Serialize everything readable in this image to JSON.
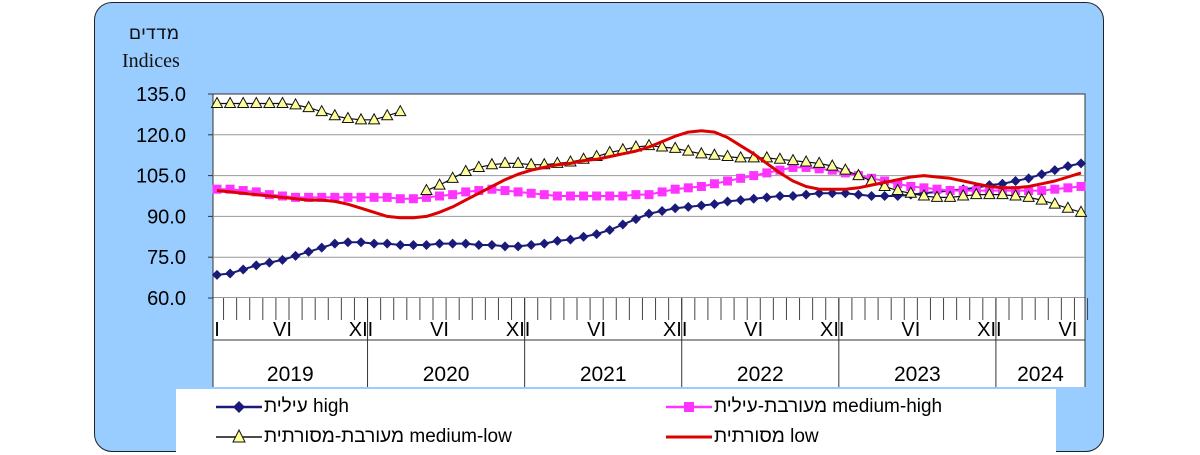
{
  "chart_data": {
    "type": "line",
    "ylabel_he": "מדדים",
    "ylabel_en": "Indices",
    "ylim": [
      60,
      135
    ],
    "yticks": [
      "135.0",
      "120.0",
      "105.0",
      "90.0",
      "75.0",
      "60.0"
    ],
    "ytick_values": [
      135,
      120,
      105,
      90,
      75,
      60
    ],
    "grid": true,
    "month_labels": [
      "I",
      "VI",
      "XII",
      "VI",
      "XII",
      "VI",
      "XII",
      "VI",
      "XII",
      "VI",
      "XII",
      "VI"
    ],
    "month_label_index": [
      0,
      5,
      11,
      17,
      23,
      29,
      35,
      41,
      47,
      53,
      59,
      65
    ],
    "years": [
      "2019",
      "2020",
      "2021",
      "2022",
      "2023",
      "2024"
    ],
    "n_months": 67,
    "series": [
      {
        "name": "עילית high",
        "color": "#1a1a7a",
        "marker": "diamond",
        "values": [
          68.5,
          69,
          70.5,
          72,
          73,
          74,
          75.5,
          77,
          78.5,
          80,
          80.5,
          80.5,
          80,
          80,
          79.5,
          79.5,
          79.5,
          80,
          80,
          80,
          79.5,
          79.5,
          79,
          79,
          79.5,
          80,
          81,
          81.5,
          82.5,
          83.5,
          85,
          87,
          89,
          91,
          92,
          93,
          93.5,
          94,
          94.5,
          95.5,
          96,
          96.5,
          97,
          97.5,
          97.5,
          98,
          98.5,
          98.5,
          98.5,
          98,
          97.5,
          97.5,
          97.5,
          98,
          98.5,
          99,
          99.5,
          100,
          100.5,
          101.5,
          102,
          103,
          104,
          105.5,
          107,
          108.5,
          109.5
        ]
      },
      {
        "name": "מעורבת-עילית medium-high",
        "color": "#ff33ff",
        "marker": "square",
        "values": [
          100,
          100,
          99.5,
          99,
          98,
          97.5,
          97,
          97,
          97,
          97,
          97,
          97,
          97,
          97,
          96.5,
          96.5,
          97,
          97.5,
          98,
          99,
          99.5,
          100,
          99.5,
          99,
          98.5,
          98,
          97.5,
          97.5,
          97.5,
          97.5,
          97.5,
          97.5,
          98,
          98,
          99,
          100,
          100.5,
          101,
          102,
          103,
          104,
          105,
          106,
          107,
          108,
          108,
          107.5,
          107,
          106,
          105,
          104,
          103,
          102,
          101,
          100.5,
          100,
          99.5,
          99.5,
          99.5,
          99.5,
          99.5,
          99.5,
          99.5,
          99.5,
          100,
          100.5,
          101
        ]
      },
      {
        "name": "מעורבת-מסורתית medium-low",
        "color": "#ffff99",
        "marker": "triangle",
        "values": [
          131.5,
          131.5,
          131.5,
          131.5,
          131.5,
          131.5,
          131,
          130,
          128.5,
          127,
          126,
          125.5,
          125.5,
          127,
          128.5,
          null,
          99.5,
          101.5,
          104,
          106.5,
          108,
          109,
          109.5,
          109.5,
          109,
          109,
          109.5,
          110,
          111,
          112,
          113.5,
          114.5,
          115.5,
          116,
          115.5,
          115,
          114,
          113,
          112.5,
          112,
          111.5,
          111.5,
          111.5,
          111,
          110.5,
          110,
          109.5,
          108.5,
          107,
          105,
          103,
          101,
          99.5,
          98.5,
          97.5,
          97,
          97,
          97.5,
          98,
          98,
          98,
          97.5,
          97,
          96,
          94.5,
          93,
          91.5
        ]
      },
      {
        "name": "מסורתית low",
        "color": "#dd0000",
        "marker": "none",
        "values": [
          99.5,
          99,
          98.5,
          98,
          97.5,
          97,
          96.5,
          96,
          96,
          95.5,
          94.5,
          93,
          91.5,
          90,
          89.5,
          89.5,
          90,
          91.5,
          93.5,
          96,
          98.5,
          101,
          103.5,
          105.5,
          107,
          108,
          109,
          109.5,
          110.5,
          111,
          112,
          113,
          114,
          115.5,
          117.5,
          119.5,
          121,
          121.5,
          121,
          119,
          116,
          113,
          109.5,
          106,
          103,
          101,
          100,
          100,
          100,
          100.5,
          101.5,
          102.5,
          103.5,
          104.5,
          105,
          104.5,
          104,
          103,
          102,
          101,
          100.5,
          100.5,
          101,
          102,
          103,
          104.5,
          106
        ]
      }
    ]
  }
}
